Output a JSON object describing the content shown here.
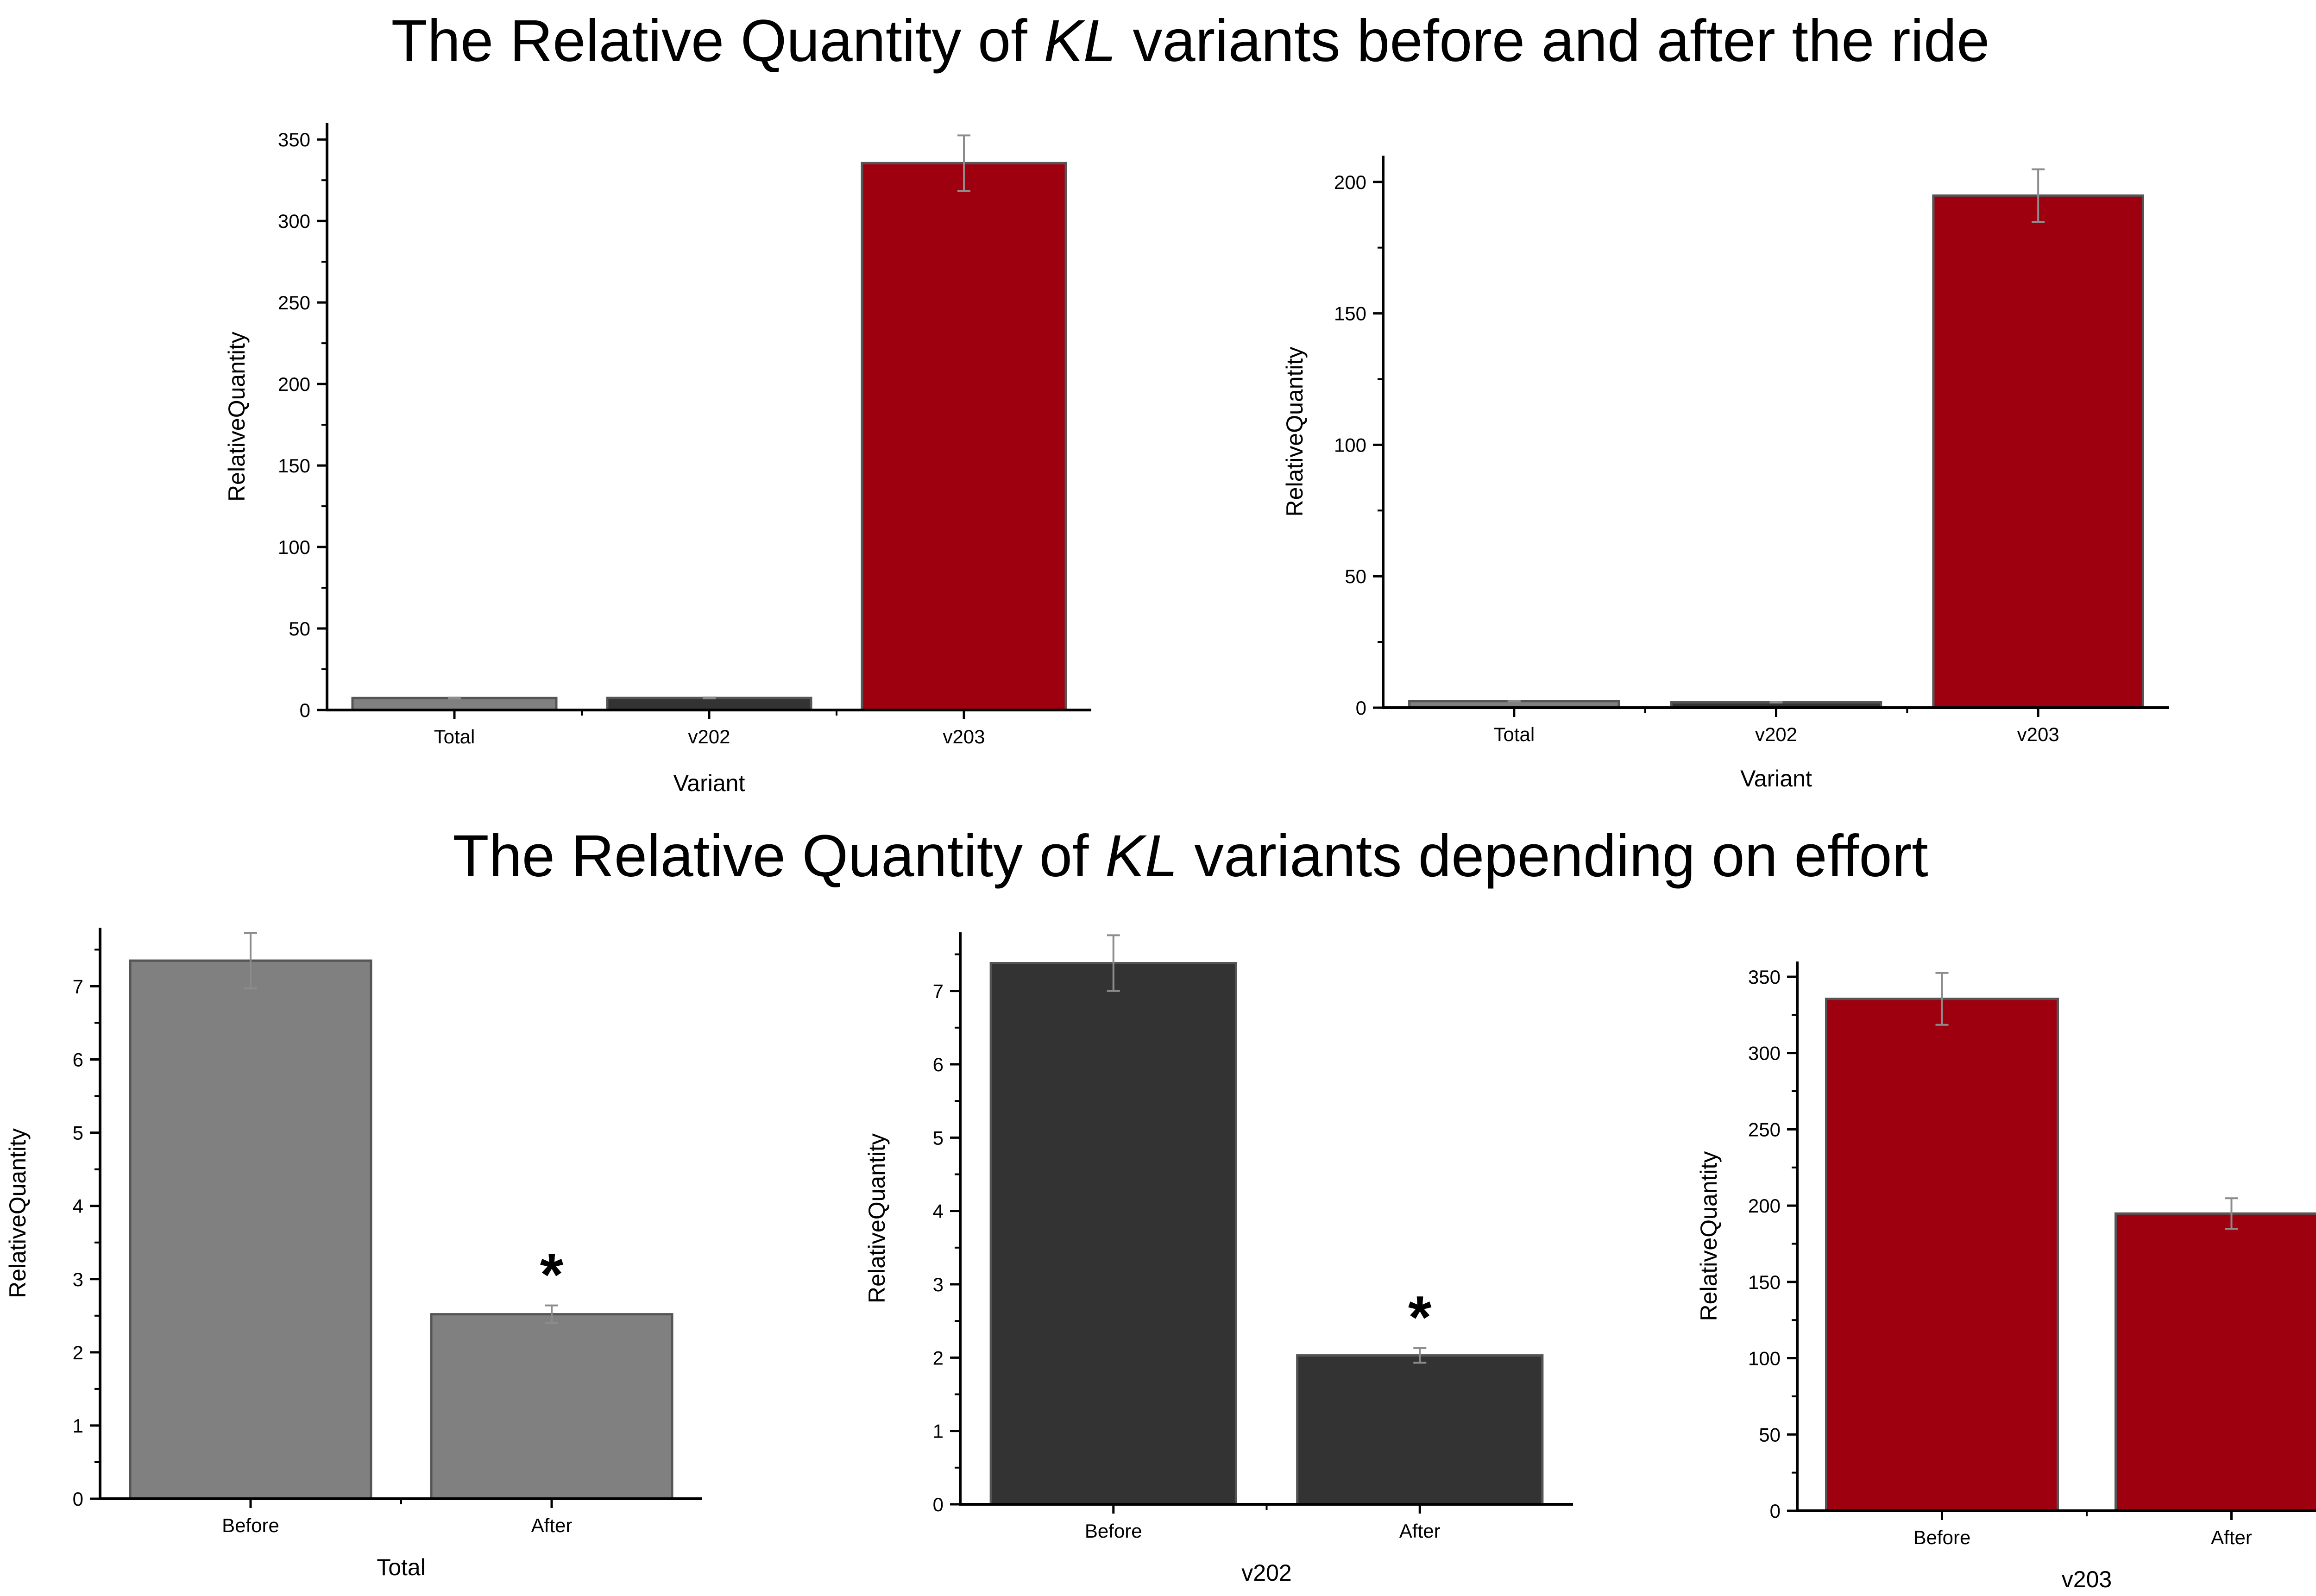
{
  "titles": {
    "top": {
      "prefix": "The Relative Quantity of ",
      "italic": "KL",
      "suffix": " variants before and after the ride"
    },
    "bottom": {
      "prefix": "The Relative Quantity of ",
      "italic": "KL",
      "suffix": " variants depending on effort"
    }
  },
  "colors": {
    "total": "#808080",
    "v202": "#333333",
    "v203": "#9e0010",
    "axis": "#000000",
    "error_bar": "#8c8c8c",
    "bar_edge": "#555555"
  },
  "chart_data": [
    {
      "type": "bar",
      "categories": [
        "Total",
        "v202",
        "v203"
      ],
      "values": [
        7.35,
        7.4,
        335.5
      ],
      "errors": [
        0.3,
        0.3,
        17
      ],
      "bar_colors": [
        "#808080",
        "#333333",
        "#9e0010"
      ],
      "xlabel": "Variant",
      "ylabel": "RelativeQuantity",
      "ylim": [
        0,
        360
      ],
      "yticks": [
        0,
        50,
        100,
        150,
        200,
        250,
        300,
        350
      ],
      "annotations": [
        "",
        "",
        ""
      ]
    },
    {
      "type": "bar",
      "categories": [
        "Total",
        "v202",
        "v203"
      ],
      "values": [
        2.5,
        2.05,
        194.8
      ],
      "errors": [
        0.1,
        0.1,
        10
      ],
      "bar_colors": [
        "#808080",
        "#333333",
        "#9e0010"
      ],
      "xlabel": "Variant",
      "ylabel": "RelativeQuantity",
      "ylim": [
        0,
        210
      ],
      "yticks": [
        0,
        50,
        100,
        150,
        200
      ],
      "annotations": [
        "",
        "",
        ""
      ]
    },
    {
      "type": "bar",
      "categories": [
        "Before",
        "After"
      ],
      "values": [
        7.35,
        2.52
      ],
      "errors": [
        0.38,
        0.12
      ],
      "bar_colors": [
        "#808080",
        "#808080"
      ],
      "xlabel": "Total",
      "ylabel": "RelativeQuantity",
      "ylim": [
        0,
        7.8
      ],
      "yticks": [
        0,
        1,
        2,
        3,
        4,
        5,
        6,
        7
      ],
      "annotations": [
        "",
        "*"
      ]
    },
    {
      "type": "bar",
      "categories": [
        "Before",
        "After"
      ],
      "values": [
        7.38,
        2.03
      ],
      "errors": [
        0.38,
        0.1
      ],
      "bar_colors": [
        "#333333",
        "#333333"
      ],
      "xlabel": "v202",
      "ylabel": "RelativeQuantity",
      "ylim": [
        0,
        7.8
      ],
      "yticks": [
        0,
        1,
        2,
        3,
        4,
        5,
        6,
        7
      ],
      "annotations": [
        "",
        "*"
      ]
    },
    {
      "type": "bar",
      "categories": [
        "Before",
        "After"
      ],
      "values": [
        335.5,
        194.8
      ],
      "errors": [
        17,
        10
      ],
      "bar_colors": [
        "#9e0010",
        "#9e0010"
      ],
      "xlabel": "v203",
      "ylabel": "RelativeQuantity",
      "ylim": [
        0,
        360
      ],
      "yticks": [
        0,
        50,
        100,
        150,
        200,
        250,
        300,
        350
      ],
      "annotations": [
        "",
        ""
      ]
    }
  ]
}
